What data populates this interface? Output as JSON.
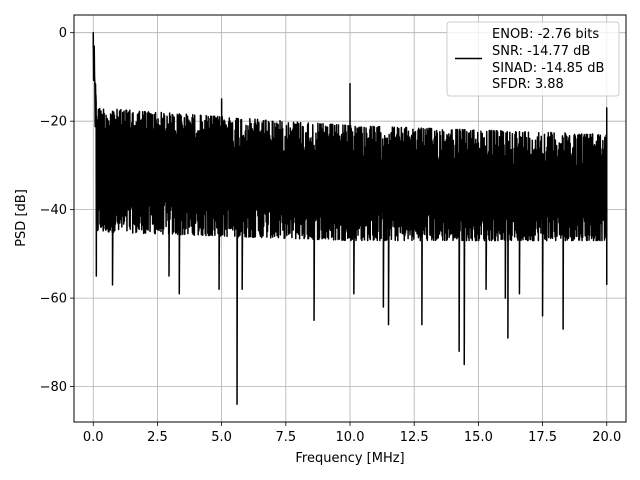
{
  "chart_data": {
    "type": "line",
    "title": "",
    "xlabel": "Frequency [MHz]",
    "ylabel": "PSD [dB]",
    "xlim": [
      -0.75,
      20.75
    ],
    "ylim": [
      -88,
      4
    ],
    "grid": true,
    "legend_placement": "top-right",
    "xticks": [
      0.0,
      2.5,
      5.0,
      7.5,
      10.0,
      12.5,
      15.0,
      17.5,
      20.0
    ],
    "xtick_labels": [
      "0.0",
      "2.5",
      "5.0",
      "7.5",
      "10.0",
      "12.5",
      "15.0",
      "17.5",
      "20.0"
    ],
    "yticks": [
      0,
      -20,
      -40,
      -60,
      -80
    ],
    "ytick_labels": [
      "0",
      "−20",
      "−40",
      "−60",
      "−80"
    ],
    "legend_entries": [
      "ENOB: -2.76 bits",
      "SNR: -14.77 dB",
      "SINAD: -14.85 dB",
      "SFDR: 3.88"
    ],
    "series": [
      {
        "color": "#000000",
        "x_range": [
          0,
          20
        ],
        "noise_envelope": {
          "upper": [
            [
              0.15,
              -17
            ],
            [
              5,
              -19
            ],
            [
              10,
              -21
            ],
            [
              15,
              -22
            ],
            [
              20,
              -23
            ]
          ],
          "lower": [
            [
              0.15,
              -45
            ],
            [
              5,
              -46
            ],
            [
              10,
              -47
            ],
            [
              15,
              -47
            ],
            [
              20,
              -47
            ]
          ]
        },
        "peaks": [
          {
            "x": 0.0,
            "y": 0.0
          },
          {
            "x": 0.03,
            "y": -9.0
          },
          {
            "x": 0.1,
            "y": -14.0
          },
          {
            "x": 5.0,
            "y": -15.0
          },
          {
            "x": 10.0,
            "y": -11.5
          },
          {
            "x": 20.0,
            "y": -17.0
          }
        ],
        "dips": [
          {
            "x": 0.12,
            "y": -55
          },
          {
            "x": 0.75,
            "y": -57
          },
          {
            "x": 2.95,
            "y": -55
          },
          {
            "x": 3.35,
            "y": -59
          },
          {
            "x": 4.9,
            "y": -58
          },
          {
            "x": 5.6,
            "y": -84
          },
          {
            "x": 5.8,
            "y": -58
          },
          {
            "x": 8.6,
            "y": -65
          },
          {
            "x": 10.15,
            "y": -59
          },
          {
            "x": 11.3,
            "y": -62
          },
          {
            "x": 11.5,
            "y": -66
          },
          {
            "x": 12.8,
            "y": -66
          },
          {
            "x": 14.25,
            "y": -72
          },
          {
            "x": 14.45,
            "y": -75
          },
          {
            "x": 15.3,
            "y": -58
          },
          {
            "x": 16.05,
            "y": -60
          },
          {
            "x": 16.15,
            "y": -69
          },
          {
            "x": 16.6,
            "y": -59
          },
          {
            "x": 17.5,
            "y": -64
          },
          {
            "x": 18.3,
            "y": -67
          },
          {
            "x": 20.0,
            "y": -57
          }
        ]
      }
    ]
  }
}
